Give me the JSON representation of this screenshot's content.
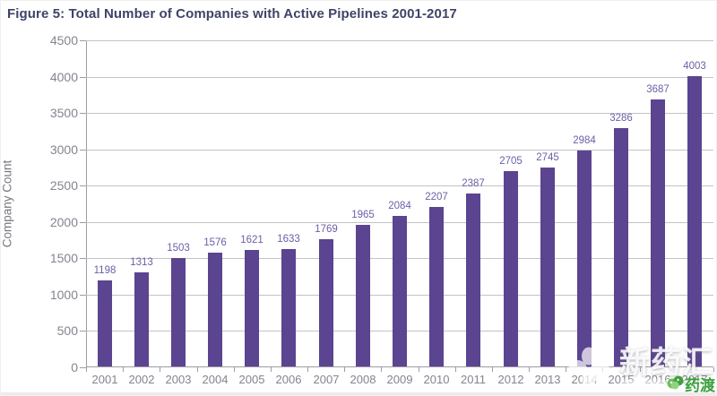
{
  "figure_title": "Figure 5: Total Number of Companies with Active Pipelines 2001-2017",
  "chart_data": {
    "type": "bar",
    "title": "Figure 5: Total Number of Companies with Active Pipelines 2001-2017",
    "categories": [
      "2001",
      "2002",
      "2003",
      "2004",
      "2005",
      "2006",
      "2007",
      "2008",
      "2009",
      "2010",
      "2011",
      "2012",
      "2013",
      "2014",
      "2015",
      "2016",
      "2017"
    ],
    "values": [
      1198,
      1313,
      1503,
      1576,
      1621,
      1633,
      1769,
      1965,
      2084,
      2207,
      2387,
      2705,
      2745,
      2984,
      3286,
      3687,
      4003
    ],
    "xlabel": "",
    "ylabel": "Company Count",
    "ylim": [
      0,
      4500
    ],
    "ytick_step": 500,
    "grid": true,
    "legend": "none",
    "value_labels_shown": true,
    "colors": {
      "bar": "#5b4490",
      "value_label": "#6e5ea6",
      "tick_label": "#85838f",
      "gridline": "#c3c3c8",
      "axis": "#9c9ca4",
      "title": "#3d4467"
    }
  },
  "watermarks": {
    "center_brand": {
      "text": "新药汇",
      "icon": "clover-icon"
    },
    "corner_brand": {
      "text": "药渡",
      "icon": "leaf-cluster-icon"
    }
  }
}
